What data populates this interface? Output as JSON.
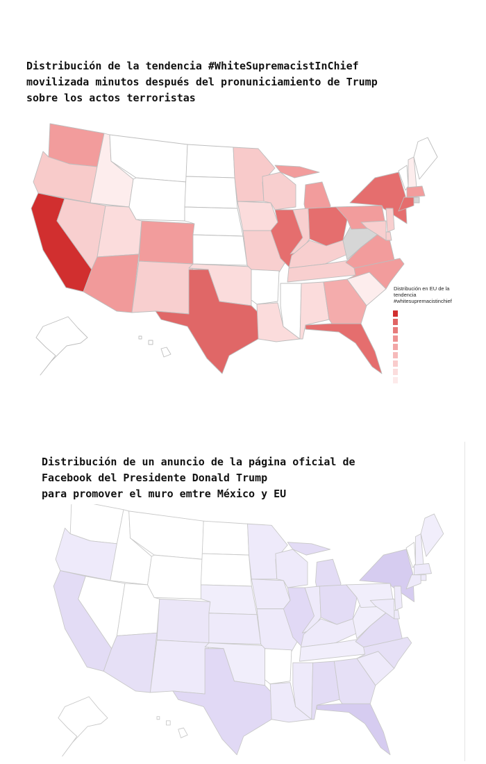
{
  "map1": {
    "title": "Distribución de la tendencia #WhiteSupremacistInChief\nmovilizada minutos después del pronuniciamiento de Trump\nsobre los actos terroristas",
    "legend_title": "Distribución en EU de la\ntendencia\n#whitesupremacistinchief",
    "legend_colors": [
      "#d12f2f",
      "#e06565",
      "#e77b7b",
      "#ee9292",
      "#f2a6a6",
      "#f6baba",
      "#f9cccc",
      "#fbdddd",
      "#fdeaea"
    ],
    "fills": {
      "WA": "#f29c9c",
      "OR": "#f8cbca",
      "CA": "#d12f2f",
      "ID": "#fdeded",
      "NV": "#f8cfcf",
      "UT": "#fbdcdc",
      "AZ": "#f19a9a",
      "MT": "#ffffff",
      "WY": "#ffffff",
      "CO": "#f29c9c",
      "NM": "#f8cfcf",
      "ND": "#ffffff",
      "SD": "#ffffff",
      "NE": "#ffffff",
      "KS": "#ffffff",
      "OK": "#fbdcdc",
      "TX": "#e06767",
      "MN": "#f8caca",
      "IA": "#fbdcdc",
      "MO": "#f8cfcf",
      "AR": "#ffffff",
      "LA": "#fbdcdc",
      "WI": "#f8cfcf",
      "IL": "#e56e6e",
      "MI": "#f29c9c",
      "IN": "#f8cfcf",
      "OH": "#e56e6e",
      "KY": "#f8cfcf",
      "TN": "#f8cfcf",
      "MS": "#ffffff",
      "AL": "#fbdcdc",
      "GA": "#f4acac",
      "FL": "#e56e6e",
      "SC": "#fdeded",
      "NC": "#f29c9c",
      "VA": "#f29c9c",
      "WV": "#d6d6d6",
      "PA": "#f29c9c",
      "NY": "#e56e6e",
      "VT": "#ffffff",
      "NH": "#fdeded",
      "ME": "#ffffff",
      "MA": "#f29c9c",
      "NJ": "#f8cfcf",
      "DE": "#f8cfcf",
      "MD": "#f8cfcf",
      "CT": "#e56e6e",
      "RI": "#d6d6d6",
      "AK": "#ffffff",
      "HI": "#ffffff"
    }
  },
  "map2": {
    "title": "Distribución de un anuncio de la página oficial de\nFacebook del Presidente Donald Trump\npara promover el muro emtre México y EU",
    "fills": {
      "WA": "#ffffff",
      "OR": "#eeeafa",
      "CA": "#e3dcf5",
      "ID": "#ffffff",
      "NV": "#ffffff",
      "UT": "#ffffff",
      "AZ": "#e6e0f6",
      "MT": "#ffffff",
      "WY": "#ffffff",
      "CO": "#ebe6f8",
      "NM": "#eeeafa",
      "ND": "#ffffff",
      "SD": "#ffffff",
      "NE": "#f1eefb",
      "KS": "#eeeafa",
      "OK": "#f1eefb",
      "TX": "#e1d9f5",
      "MN": "#eeeafa",
      "IA": "#eeeafa",
      "MO": "#eeeafa",
      "AR": "#ffffff",
      "LA": "#eeeafa",
      "WI": "#eeeafa",
      "IL": "#e1d9f5",
      "MI": "#e3dcf5",
      "IN": "#eeeafa",
      "OH": "#e3dcf5",
      "KY": "#eeeafa",
      "TN": "#f1eefb",
      "MS": "#eeeafa",
      "AL": "#e3dcf5",
      "GA": "#e6e0f6",
      "FL": "#d6ccf0",
      "SC": "#eeeafa",
      "NC": "#e6e0f6",
      "VA": "#e3dcf5",
      "WV": "#f1eefb",
      "PA": "#f1eefb",
      "NY": "#d6ccf0",
      "VT": "#ffffff",
      "NH": "#f1eefb",
      "ME": "#f1eefb",
      "MA": "#eeeafa",
      "NJ": "#eeeafa",
      "DE": "#eeeafa",
      "MD": "#eeeafa",
      "CT": "#eeeafa",
      "RI": "#eeeafa",
      "AK": "#ffffff",
      "HI": "#ffffff"
    }
  }
}
